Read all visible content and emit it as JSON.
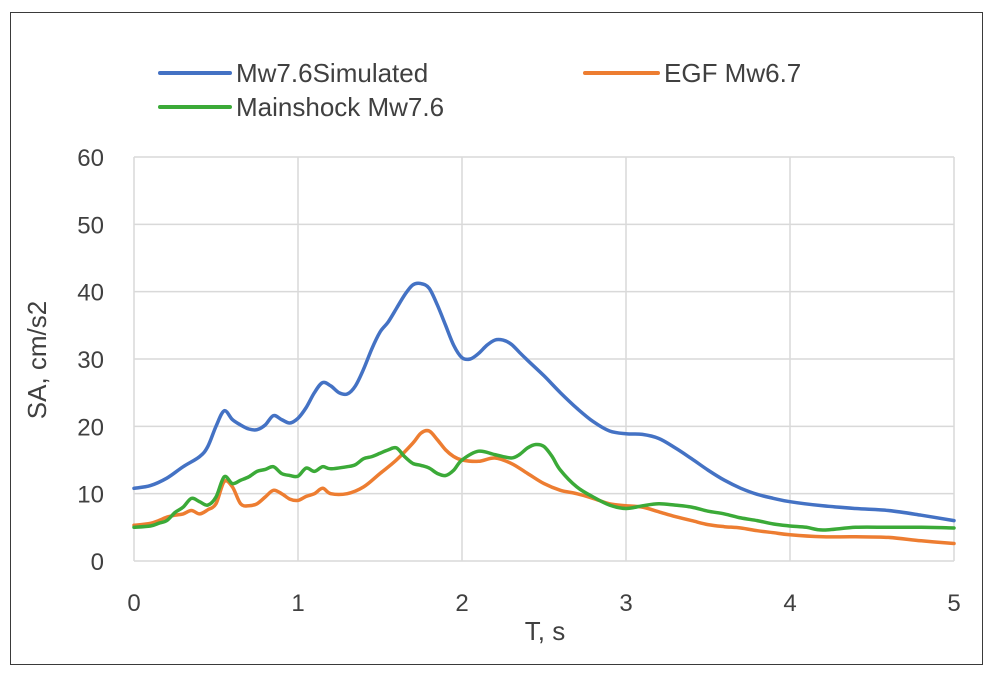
{
  "chart_data": {
    "type": "line",
    "title": "",
    "xlabel": "T, s",
    "ylabel": "SA, cm/s2",
    "xlim": [
      0,
      5
    ],
    "ylim": [
      0,
      60
    ],
    "xticks": [
      0,
      1,
      2,
      3,
      4,
      5
    ],
    "yticks": [
      0,
      10,
      20,
      30,
      40,
      50,
      60
    ],
    "grid": "vertical and horizontal",
    "legend_position": "top",
    "series": [
      {
        "name": "Mw7.6Simulated",
        "color": "#4472C4",
        "x": [
          0,
          0.1,
          0.2,
          0.3,
          0.4,
          0.45,
          0.5,
          0.55,
          0.6,
          0.65,
          0.7,
          0.75,
          0.8,
          0.85,
          0.9,
          0.95,
          1.0,
          1.05,
          1.1,
          1.15,
          1.2,
          1.25,
          1.3,
          1.35,
          1.4,
          1.45,
          1.5,
          1.55,
          1.6,
          1.65,
          1.7,
          1.75,
          1.8,
          1.85,
          1.9,
          1.95,
          2.0,
          2.05,
          2.1,
          2.15,
          2.2,
          2.25,
          2.3,
          2.35,
          2.4,
          2.5,
          2.6,
          2.7,
          2.8,
          2.9,
          3.0,
          3.1,
          3.2,
          3.3,
          3.4,
          3.5,
          3.6,
          3.7,
          3.8,
          3.9,
          4.0,
          4.2,
          4.4,
          4.6,
          4.8,
          5.0
        ],
        "values": [
          10.8,
          11.2,
          12.3,
          14.0,
          15.5,
          17.0,
          20.0,
          22.3,
          21.0,
          20.2,
          19.6,
          19.5,
          20.2,
          21.6,
          21.0,
          20.5,
          21.2,
          22.8,
          25.0,
          26.5,
          26.0,
          25.0,
          24.8,
          26.0,
          28.5,
          31.5,
          34.0,
          35.5,
          37.5,
          39.5,
          41.0,
          41.2,
          40.5,
          38.0,
          35.0,
          32.0,
          30.2,
          30.0,
          30.8,
          32.0,
          32.8,
          32.8,
          32.2,
          31.0,
          29.8,
          27.5,
          25.0,
          22.7,
          20.7,
          19.3,
          18.9,
          18.8,
          18.2,
          16.8,
          15.2,
          13.5,
          12.0,
          10.8,
          9.9,
          9.3,
          8.8,
          8.2,
          7.8,
          7.5,
          6.8,
          6.0
        ]
      },
      {
        "name": "EGF Mw6.7",
        "color": "#ED7D31",
        "x": [
          0,
          0.1,
          0.15,
          0.2,
          0.25,
          0.3,
          0.35,
          0.4,
          0.45,
          0.5,
          0.55,
          0.6,
          0.65,
          0.7,
          0.75,
          0.8,
          0.85,
          0.9,
          0.95,
          1.0,
          1.05,
          1.1,
          1.15,
          1.2,
          1.3,
          1.4,
          1.5,
          1.6,
          1.7,
          1.75,
          1.8,
          1.85,
          1.9,
          1.95,
          2.0,
          2.1,
          2.2,
          2.3,
          2.4,
          2.5,
          2.6,
          2.7,
          2.8,
          2.9,
          3.0,
          3.1,
          3.2,
          3.3,
          3.4,
          3.5,
          3.6,
          3.7,
          3.8,
          3.9,
          4.0,
          4.2,
          4.4,
          4.6,
          4.8,
          5.0
        ],
        "values": [
          5.3,
          5.6,
          6.0,
          6.5,
          6.8,
          7.0,
          7.5,
          7.0,
          7.6,
          8.5,
          11.8,
          11.0,
          8.5,
          8.2,
          8.5,
          9.5,
          10.5,
          10.0,
          9.2,
          9.0,
          9.6,
          10.0,
          10.8,
          10.0,
          10.0,
          11.0,
          13.0,
          15.0,
          17.5,
          19.0,
          19.3,
          18.0,
          16.5,
          15.5,
          15.0,
          14.8,
          15.3,
          14.5,
          13.0,
          11.5,
          10.5,
          10.0,
          9.3,
          8.5,
          8.2,
          8.0,
          7.3,
          6.6,
          6.0,
          5.4,
          5.1,
          4.9,
          4.5,
          4.2,
          3.9,
          3.6,
          3.6,
          3.5,
          3.0,
          2.6
        ]
      },
      {
        "name": "Mainshock Mw7.6",
        "color": "#3BAA38",
        "x": [
          0,
          0.1,
          0.15,
          0.2,
          0.25,
          0.3,
          0.35,
          0.4,
          0.45,
          0.5,
          0.55,
          0.6,
          0.65,
          0.7,
          0.75,
          0.8,
          0.85,
          0.9,
          0.95,
          1.0,
          1.05,
          1.1,
          1.15,
          1.2,
          1.3,
          1.35,
          1.4,
          1.45,
          1.5,
          1.55,
          1.6,
          1.65,
          1.7,
          1.75,
          1.8,
          1.85,
          1.9,
          1.95,
          2.0,
          2.1,
          2.2,
          2.3,
          2.35,
          2.4,
          2.45,
          2.5,
          2.55,
          2.6,
          2.7,
          2.8,
          2.9,
          3.0,
          3.1,
          3.2,
          3.3,
          3.4,
          3.5,
          3.6,
          3.7,
          3.8,
          3.9,
          4.0,
          4.1,
          4.2,
          4.4,
          4.6,
          4.8,
          5.0
        ],
        "values": [
          5.0,
          5.2,
          5.6,
          6.0,
          7.2,
          8.0,
          9.3,
          8.8,
          8.3,
          9.5,
          12.5,
          11.5,
          12.0,
          12.5,
          13.3,
          13.6,
          14.0,
          13.0,
          12.7,
          12.6,
          13.8,
          13.3,
          14.0,
          13.7,
          14.0,
          14.3,
          15.2,
          15.5,
          16.0,
          16.5,
          16.8,
          15.5,
          14.5,
          14.2,
          13.8,
          13.0,
          12.7,
          13.5,
          15.0,
          16.3,
          15.8,
          15.3,
          15.8,
          16.8,
          17.3,
          17.0,
          15.5,
          13.5,
          11.0,
          9.5,
          8.3,
          7.8,
          8.2,
          8.5,
          8.3,
          8.0,
          7.4,
          7.0,
          6.4,
          6.0,
          5.5,
          5.2,
          5.0,
          4.6,
          5.0,
          5.0,
          5.0,
          4.9
        ]
      }
    ]
  }
}
